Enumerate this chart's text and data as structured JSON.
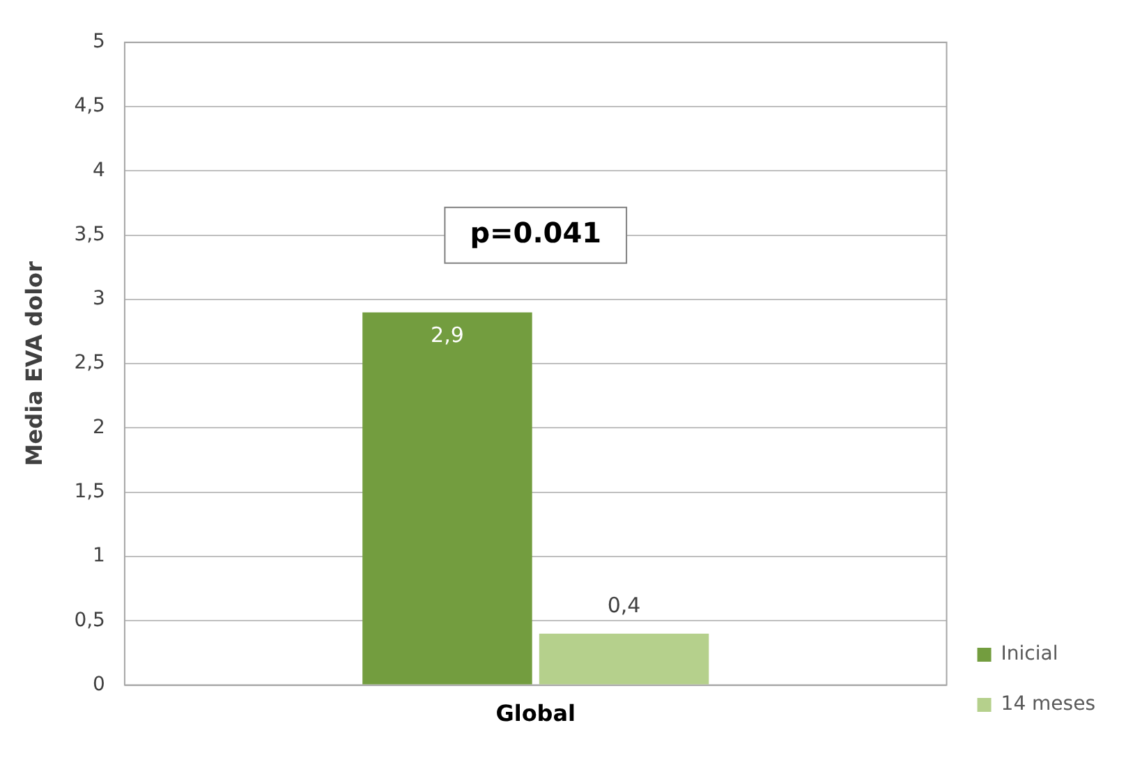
{
  "chart_data": {
    "type": "bar",
    "ylabel": "Media EVA dolor",
    "categories": [
      "Global"
    ],
    "series": [
      {
        "name": "Inicial",
        "color": "#739d3f",
        "values": [
          2.9
        ],
        "value_labels": [
          "2,9"
        ]
      },
      {
        "name": "14 meses",
        "color": "#b5d08c",
        "values": [
          0.4
        ],
        "value_labels": [
          "0,4"
        ]
      }
    ],
    "ylim": [
      0,
      5
    ],
    "yticks": [
      0,
      {
        "value": 0.5,
        "label": "0,5"
      },
      1,
      {
        "value": 1.5,
        "label": "1,5"
      },
      2,
      {
        "value": 2.5,
        "label": "2,5"
      },
      3,
      {
        "value": 3.5,
        "label": "3,5"
      },
      4,
      {
        "value": 4.5,
        "label": "4,5"
      },
      5
    ],
    "grid": "y",
    "legend": "right",
    "annotations": [
      "p=0.041"
    ]
  }
}
